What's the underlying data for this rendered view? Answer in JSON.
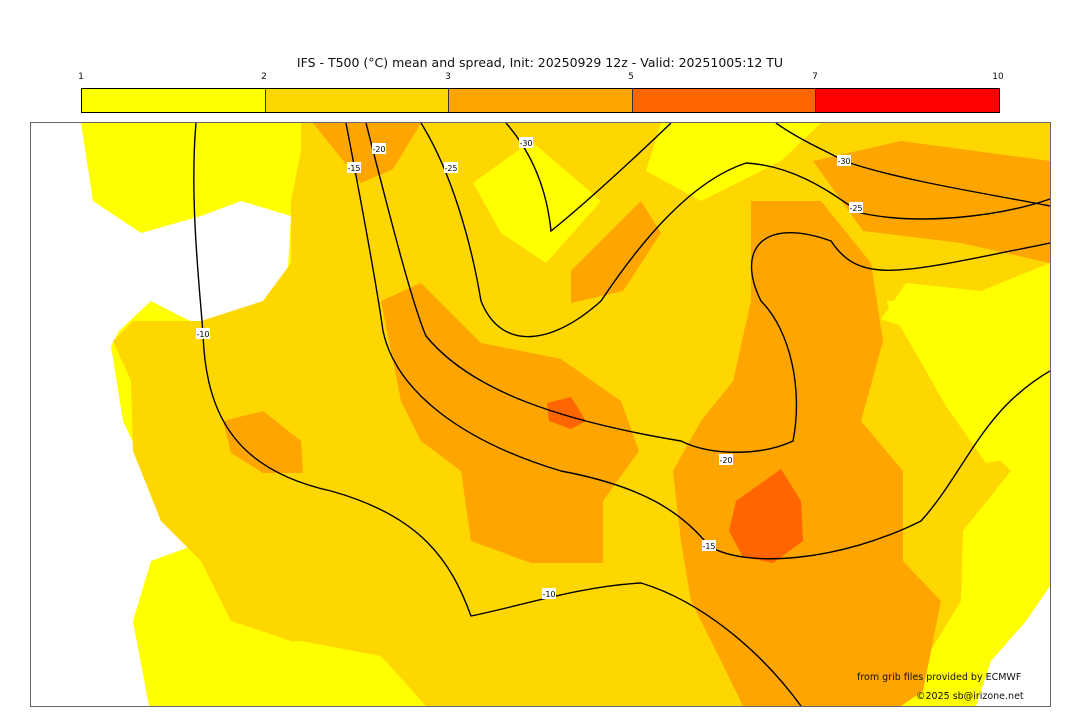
{
  "title": "IFS - T500 (°C) mean and spread, Init: 20250929 12z - Valid: 20251005:12 TU",
  "colorbar": {
    "ticks": [
      "1",
      "2",
      "3",
      "5",
      "7",
      "10"
    ],
    "colors": [
      "#FFFF00",
      "#FFD700",
      "#FFA500",
      "#FF6600",
      "#FF0000"
    ]
  },
  "contour_labels": {
    "m10a": "-10",
    "m10b": "-10",
    "m15a": "-15",
    "m15b": "-15",
    "m20a": "-20",
    "m20b": "-20",
    "m25a": "-25",
    "m25b": "-25",
    "m30a": "-30",
    "m30b": "-30"
  },
  "credits": {
    "source": "from grib files provided by ECMWF",
    "copyright": "©2025 sb@irizone.net"
  }
}
